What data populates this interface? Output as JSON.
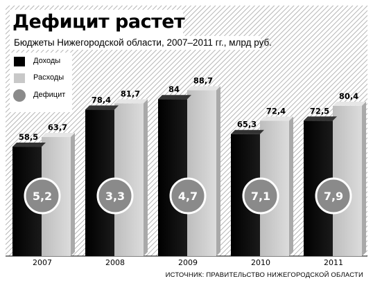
{
  "title": "Дефицит растет",
  "subtitle": "Бюджеты Нижегородской области, 2007–2011 гг., млрд руб.",
  "legend": {
    "income": "Доходы",
    "expense": "Расходы",
    "deficit": "Дефицит"
  },
  "source": "ИСТОЧНИК: ПРАВИТЕЛЬСТВО НИЖЕГОРОДСКОЙ ОБЛАСТИ",
  "colors": {
    "income": "#000000",
    "expense": "#c8c8c8",
    "deficit": "#8a8a8a",
    "stripe": "#b5b5b5"
  },
  "chart_data": {
    "type": "bar",
    "categories": [
      "2007",
      "2008",
      "2009",
      "2010",
      "2011"
    ],
    "series": [
      {
        "name": "Доходы",
        "values": [
          58.5,
          78.4,
          84,
          65.3,
          72.5
        ],
        "labels": [
          "58,5",
          "78,4",
          "84",
          "65,3",
          "72,5"
        ]
      },
      {
        "name": "Расходы",
        "values": [
          63.7,
          81.7,
          88.7,
          72.4,
          80.4
        ],
        "labels": [
          "63,7",
          "81,7",
          "88,7",
          "72,4",
          "80,4"
        ]
      },
      {
        "name": "Дефицит",
        "values": [
          5.2,
          3.3,
          4.7,
          7.1,
          7.9
        ],
        "labels": [
          "5,2",
          "3,3",
          "4,7",
          "7,1",
          "7,9"
        ]
      }
    ],
    "title": "Дефицит растет",
    "ylabel": "млрд руб.",
    "ylim": [
      0,
      100
    ],
    "legend_position": "top-left"
  }
}
